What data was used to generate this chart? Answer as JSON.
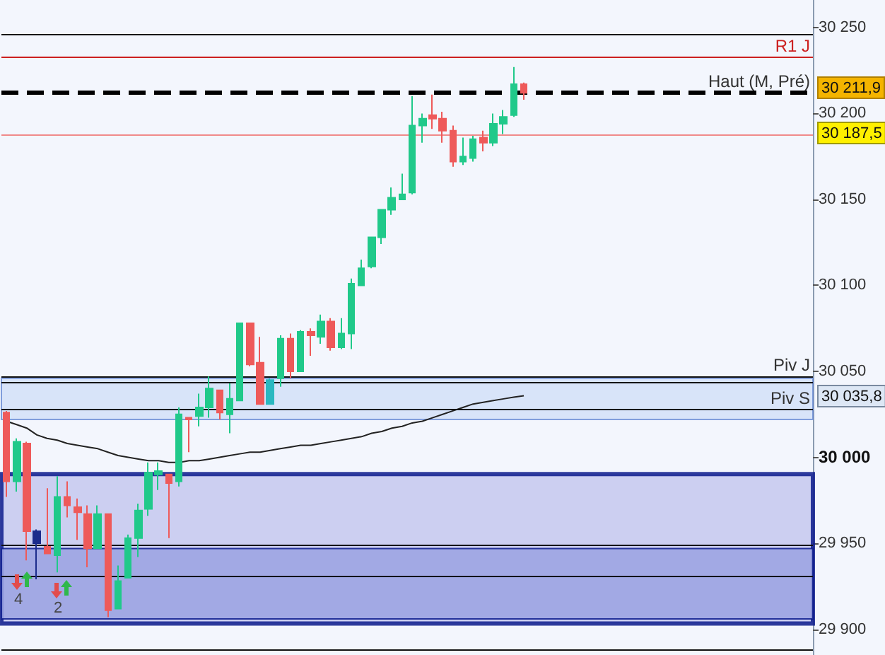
{
  "chart_data": {
    "type": "candlestick",
    "categories": [
      null,
      null,
      null,
      null,
      null,
      null,
      null,
      null,
      null,
      null,
      null,
      null,
      null,
      null,
      null,
      null,
      null,
      null,
      null,
      null,
      null,
      null,
      null,
      null,
      null,
      null,
      null,
      null,
      null,
      null,
      null,
      null,
      null,
      null,
      null,
      null,
      null,
      null,
      null,
      null,
      null,
      null,
      null,
      null,
      null,
      null,
      null,
      null,
      null,
      null,
      null,
      null
    ],
    "ylim": [
      29885,
      30266
    ],
    "yticks": [
      {
        "value": 29900,
        "label": "29 900"
      },
      {
        "value": 29950,
        "label": "29 950"
      },
      {
        "value": 30000,
        "label": "30 000"
      },
      {
        "value": 30050,
        "label": "30 050"
      },
      {
        "value": 30100,
        "label": "30 100"
      },
      {
        "value": 30150,
        "label": "30 150"
      },
      {
        "value": 30200,
        "label": "30 200"
      },
      {
        "value": 30250,
        "label": "30 250"
      }
    ],
    "grid": false,
    "tick_labels": "y",
    "series": [
      {
        "ohlc": [
          [
            30026,
            30027,
            29977,
            29986
          ],
          [
            29986,
            30011,
            29980,
            30009
          ],
          [
            30008,
            30009,
            29940,
            29957
          ],
          [
            29957,
            29958,
            29929,
            29950
          ],
          [
            29948,
            29982,
            29944,
            29944
          ],
          [
            29943,
            29989,
            29933,
            29977
          ],
          [
            29977,
            29986,
            29965,
            29972
          ],
          [
            29971,
            29976,
            29952,
            29968
          ],
          [
            29967,
            29972,
            29936,
            29947
          ],
          [
            29947,
            29972,
            29947,
            29967
          ],
          [
            29967,
            29967,
            29907,
            29911
          ],
          [
            29912,
            29937,
            29912,
            29928
          ],
          [
            29930,
            29955,
            29930,
            29953
          ],
          [
            29953,
            29973,
            29942,
            29969
          ],
          [
            29970,
            29997,
            29966,
            29991
          ],
          [
            29990,
            29997,
            29981,
            29992
          ],
          [
            29990,
            29990,
            29953,
            29985
          ],
          [
            29986,
            30029,
            29983,
            30025
          ],
          [
            30023,
            30023,
            30003,
            30022
          ],
          [
            30024,
            30037,
            30018,
            30029
          ],
          [
            30029,
            30047,
            30023,
            30040
          ],
          [
            30039,
            30039,
            30022,
            30026
          ],
          [
            30025,
            30043,
            30014,
            30034
          ],
          [
            30033,
            30078,
            30033,
            30078
          ],
          [
            30078,
            30078,
            30053,
            30054
          ],
          [
            30055,
            30070,
            30031,
            30031
          ],
          [
            30031,
            30046,
            30031,
            30045
          ],
          [
            30046,
            30071,
            30041,
            30069
          ],
          [
            30069,
            30072,
            30046,
            30050
          ],
          [
            30050,
            30074,
            30050,
            30073
          ],
          [
            30073,
            30075,
            30059,
            30071
          ],
          [
            30070,
            30083,
            30066,
            30079
          ],
          [
            30079,
            30081,
            30062,
            30064
          ],
          [
            30064,
            30081,
            30063,
            30072
          ],
          [
            30072,
            30104,
            30063,
            30101
          ],
          [
            30100,
            30115,
            30100,
            30110
          ],
          [
            30111,
            30128,
            30110,
            30128
          ],
          [
            30128,
            30144,
            30124,
            30144
          ],
          [
            30144,
            30157,
            30141,
            30151
          ],
          [
            30150,
            30165,
            30150,
            30153
          ],
          [
            30154,
            30210,
            30153,
            30193
          ],
          [
            30193,
            30200,
            30183,
            30197
          ],
          [
            30199,
            30211,
            30191,
            30197
          ],
          [
            30197,
            30201,
            30183,
            30190
          ],
          [
            30190,
            30193,
            30169,
            30172
          ],
          [
            30172,
            30186,
            30170,
            30175
          ],
          [
            30174,
            30187,
            30172,
            30185
          ],
          [
            30186,
            30190,
            30178,
            30183
          ],
          [
            30183,
            30200,
            30181,
            30194
          ],
          [
            30194,
            30202,
            30188,
            30198
          ],
          [
            30199,
            30227,
            30198,
            30217
          ],
          [
            30217,
            30218,
            30208,
            30212
          ]
        ],
        "colors": [
          "#ee5a5a",
          "#20c98a",
          "#ee5a5a",
          "#1c2c8c",
          "#ee5a5a",
          "#20c98a",
          "#ee5a5a",
          "#ee5a5a",
          "#ee5a5a",
          "#20c98a",
          "#ee5a5a",
          "#20c98a",
          "#20c98a",
          "#20c98a",
          "#20c98a",
          "#20c98a",
          "#ee5a5a",
          "#20c98a",
          "#ee5a5a",
          "#20c98a",
          "#20c98a",
          "#ee5a5a",
          "#20c98a",
          "#20c98a",
          "#ee5a5a",
          "#ee5a5a",
          "#2ab8c0",
          "#20c98a",
          "#ee5a5a",
          "#20c98a",
          "#ee5a5a",
          "#20c98a",
          "#ee5a5a",
          "#20c98a",
          "#20c98a",
          "#20c98a",
          "#20c98a",
          "#20c98a",
          "#20c98a",
          "#20c98a",
          "#20c98a",
          "#20c98a",
          "#ee5a5a",
          "#ee5a5a",
          "#ee5a5a",
          "#20c98a",
          "#20c98a",
          "#ee5a5a",
          "#20c98a",
          "#20c98a",
          "#20c98a",
          "#ee5a5a"
        ]
      },
      {
        "type": "line",
        "color": "#222222",
        "values": [
          30021,
          30019,
          30017,
          30013,
          30011,
          30010,
          30008,
          30007,
          30006,
          30005,
          30003,
          30001,
          30000,
          29999,
          29998,
          29998,
          29997,
          29997,
          29998,
          29998,
          29999,
          30000,
          30001,
          30002,
          30003,
          30003,
          30004,
          30005,
          30006,
          30007,
          30007,
          30008,
          30009,
          30010,
          30011,
          30012,
          30014,
          30015,
          30017,
          30018,
          30020,
          30021,
          30023,
          30025,
          30027,
          30029,
          30031,
          30032,
          30033,
          30034,
          30035,
          30035.8
        ]
      }
    ],
    "ref_lines": [
      {
        "axis": "y",
        "value": 30246,
        "color": "#111111",
        "line_style": "solid"
      },
      {
        "axis": "y",
        "value": 30232.6,
        "label": "R1 J",
        "color": "#cc2020",
        "line_style": "solid"
      },
      {
        "axis": "y",
        "value": 30211.9,
        "label": "Haut (M, Pré)",
        "color": "#000000",
        "line_style": "dashed"
      },
      {
        "axis": "y",
        "value": 30187.5,
        "color": "#f08a8a",
        "line_style": "solid"
      },
      {
        "axis": "y",
        "value": 30047.1,
        "label": "Piv J",
        "color": "#111111",
        "line_style": "solid"
      },
      {
        "axis": "y",
        "value": 30044,
        "color": "#111111",
        "line_style": "solid"
      },
      {
        "axis": "y",
        "value": 30027.8,
        "label": "Piv S",
        "color": "#111111",
        "line_style": "solid"
      },
      {
        "axis": "y",
        "value": 29949,
        "color": "#111111",
        "line_style": "solid"
      },
      {
        "axis": "y",
        "value": 29930.6,
        "color": "#111111",
        "line_style": "solid"
      },
      {
        "axis": "y",
        "value": 29888,
        "color": "#111111",
        "line_style": "solid"
      }
    ],
    "bands": [
      {
        "axis": "y",
        "from": 30022,
        "to": 30046,
        "color": "#d2e0f8"
      },
      {
        "axis": "y",
        "from": 29903.3,
        "to": 29990.2,
        "color": "#c4c8ee"
      },
      {
        "axis": "y",
        "from": 29906,
        "to": 29946.9,
        "color": "#9aa2e2"
      }
    ],
    "annotations": [
      "30 211,9",
      "30 187,5",
      "30 035,8",
      "4",
      "2"
    ]
  }
}
